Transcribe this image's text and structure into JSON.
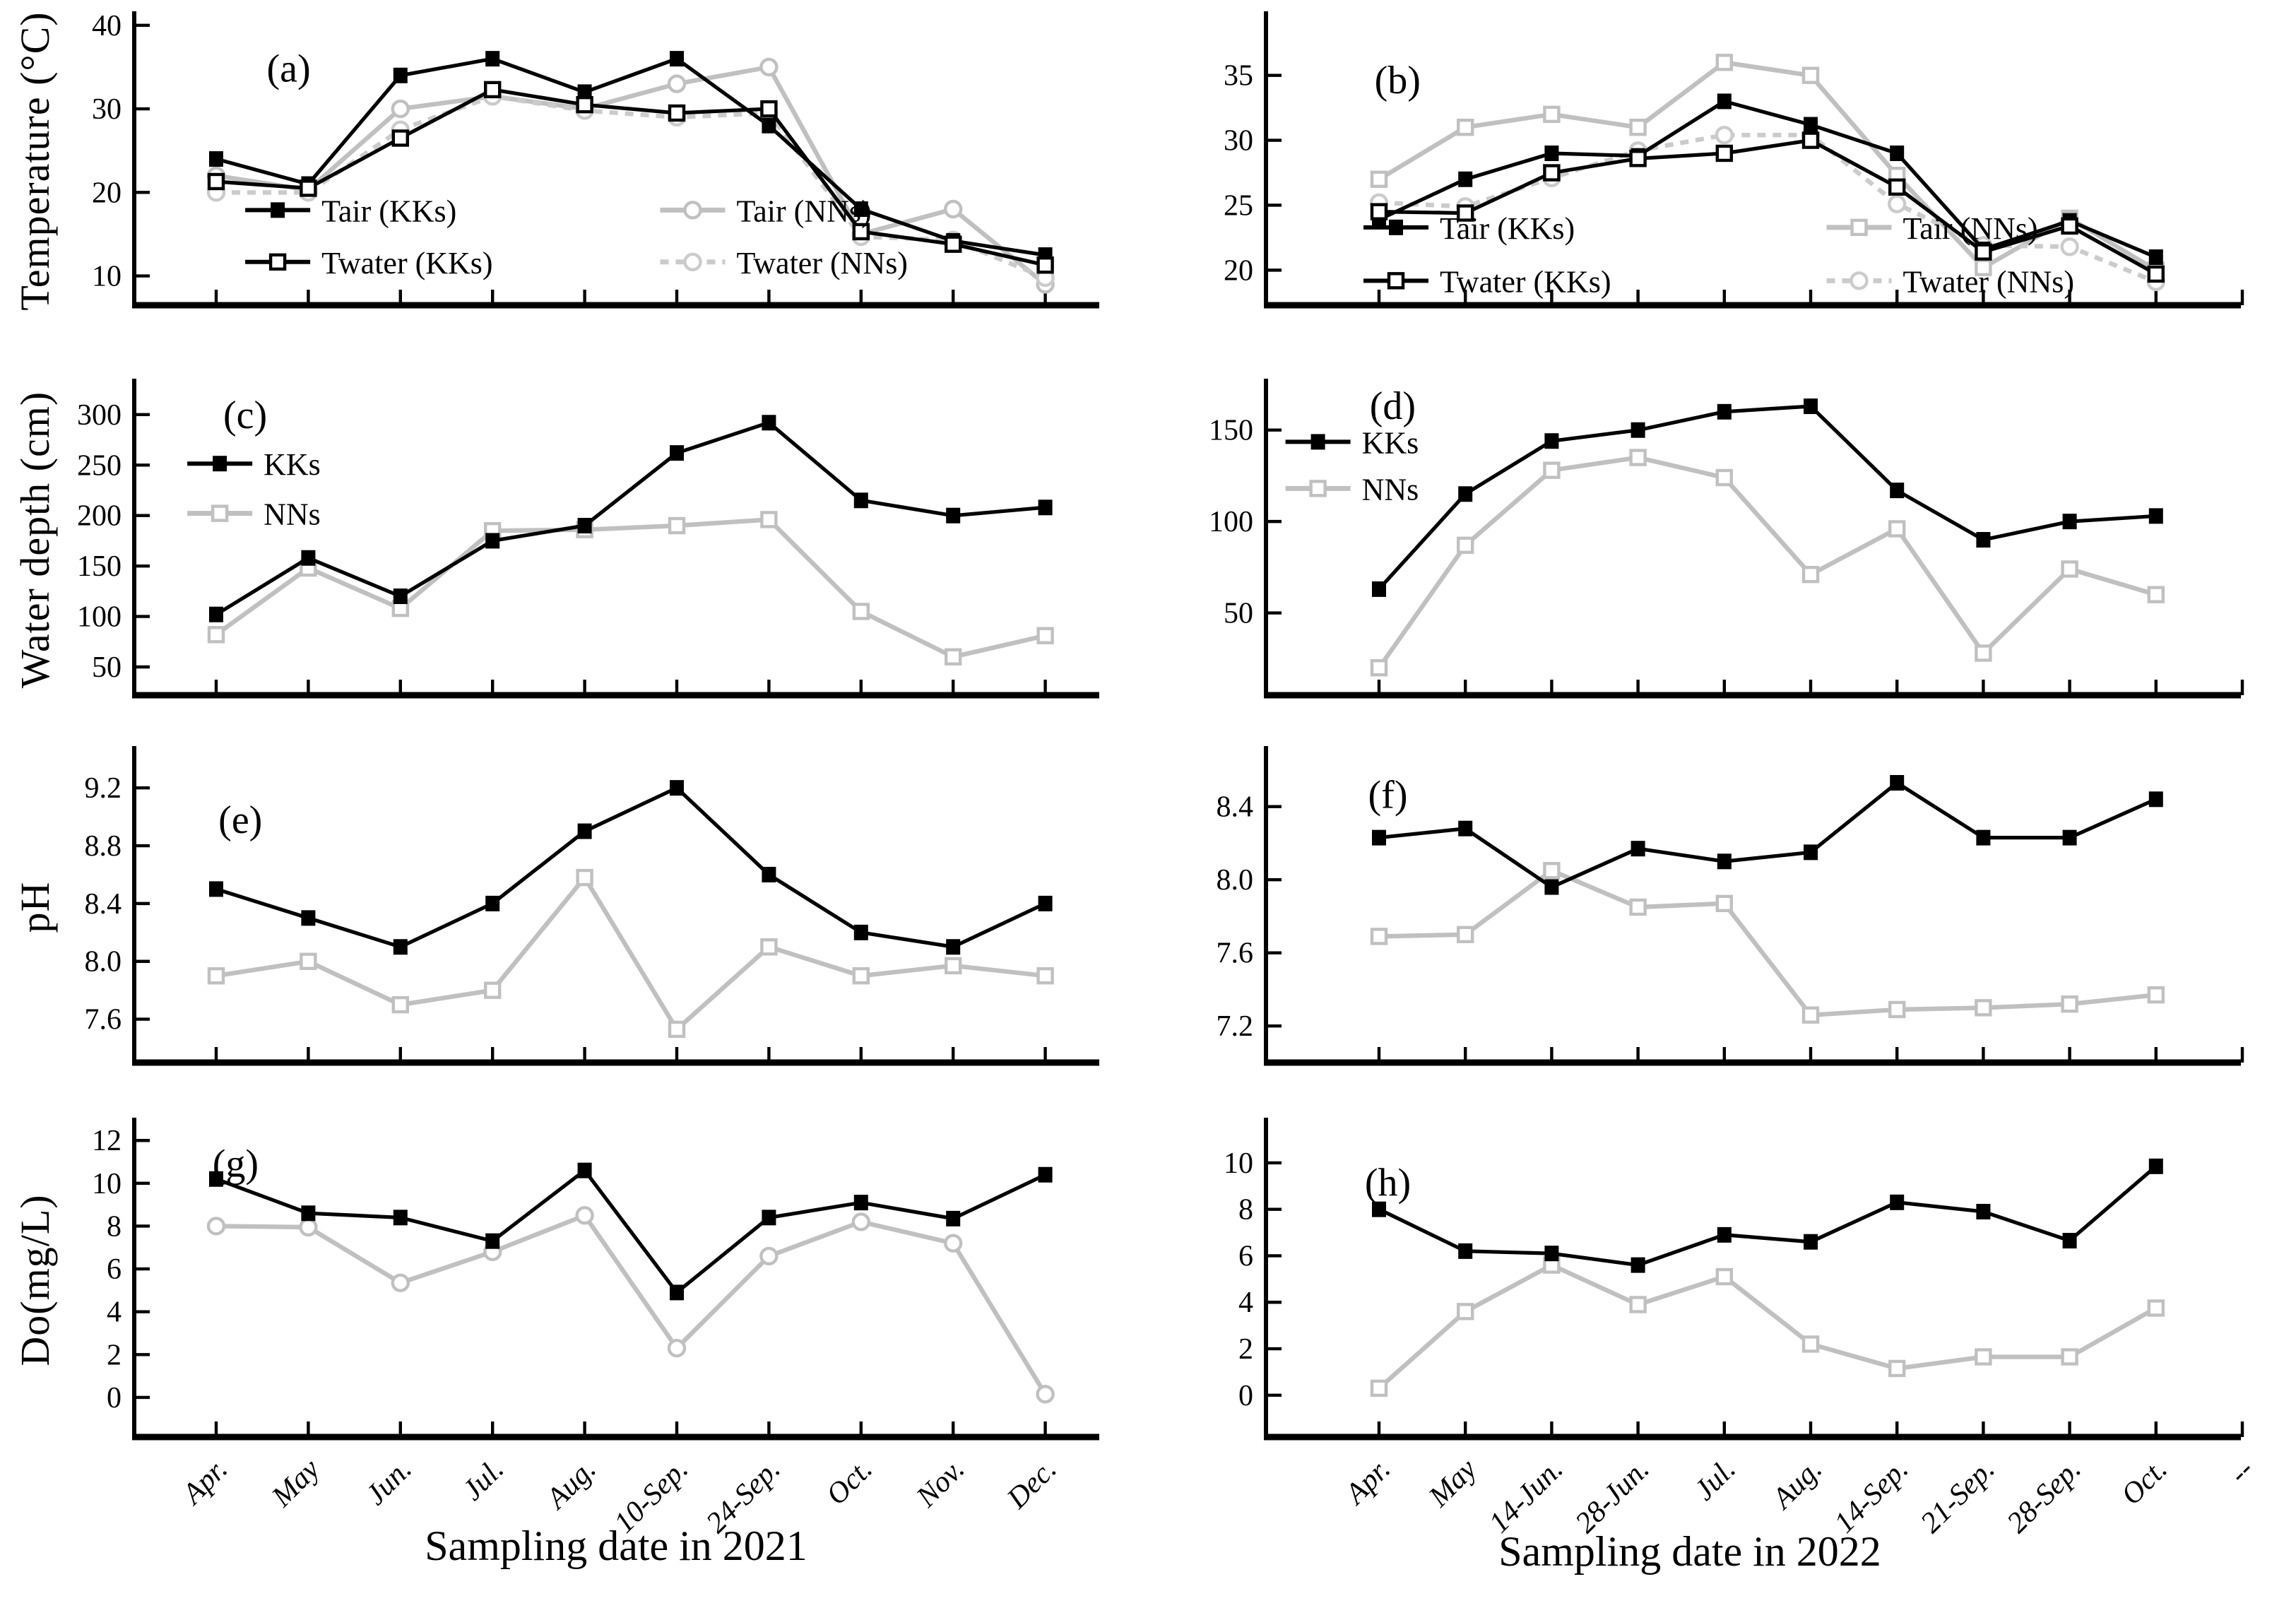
{
  "figure": {
    "background": "#ffffff",
    "row_axis_titles": [
      "Temperature (°C)",
      "Water depth (cm)",
      "pH",
      "Do(mg/L)"
    ],
    "x_axis_titles": [
      "Sampling date in 2021",
      "Sampling date in 2022"
    ],
    "colors": {
      "kks_black": "#000000",
      "nns_gray": "#c0c0c0",
      "nns_dashed_gray": "#cbcbcb"
    }
  },
  "x_categories_2021": [
    "Apr.",
    "May",
    "Jun.",
    "Jul.",
    "Aug.",
    "10-Sep.",
    "24-Sep.",
    "Oct.",
    "Nov.",
    "Dec."
  ],
  "x_categories_2022": [
    "Apr.",
    "May",
    "14-Jun.",
    "28-Jun.",
    "Jul.",
    "Aug.",
    "14-Sep.",
    "21-Sep.",
    "28-Sep.",
    "Oct.",
    "--"
  ],
  "chart_data": [
    {
      "id": "a",
      "panel_label": "(a)",
      "type": "line",
      "side": "left",
      "row": 0,
      "x_key": "x_categories_2021",
      "show_x_labels": false,
      "ylim": [
        6.5,
        41
      ],
      "yticks": [
        "10",
        "20",
        "30",
        "40"
      ],
      "label_pos": [
        0.16,
        0.18
      ],
      "legend": {
        "cols": [
          0.115,
          0.545
        ],
        "rows": [
          0.67,
          0.85
        ]
      },
      "series": [
        {
          "name": "Tair (KKs)",
          "color": "#000000",
          "marker": "square-filled",
          "dash": null,
          "values": [
            24,
            21,
            34,
            36,
            32,
            36,
            28,
            18,
            14.2,
            12.5
          ]
        },
        {
          "name": "Tair (NNs)",
          "color": "#c0c0c0",
          "marker": "circle-open",
          "dash": null,
          "values": [
            22,
            20.3,
            30,
            31.5,
            30,
            33,
            35,
            15,
            18,
            9
          ]
        },
        {
          "name": "Twater (KKs)",
          "color": "#000000",
          "marker": "square-open",
          "dash": null,
          "values": [
            21.3,
            20.5,
            26.5,
            32.3,
            30.5,
            29.5,
            30,
            15.3,
            13.8,
            11.3
          ]
        },
        {
          "name": "Twater (NNs)",
          "color": "#cbcbcb",
          "marker": "circle-open",
          "dash": "6 5",
          "values": [
            20,
            20,
            27.5,
            31.5,
            29.8,
            29,
            29.5,
            14.7,
            14.3,
            9.8
          ]
        }
      ]
    },
    {
      "id": "b",
      "panel_label": "(b)",
      "type": "line",
      "side": "right",
      "row": 0,
      "x_key": "x_categories_2022",
      "show_x_labels": false,
      "ylim": [
        17.3,
        39.5
      ],
      "yticks": [
        "20",
        "25",
        "30",
        "35"
      ],
      "label_pos": [
        0.135,
        0.22
      ],
      "legend": {
        "cols": [
          0.1,
          0.575
        ],
        "rows": [
          0.73,
          0.915
        ]
      },
      "series": [
        {
          "name": "Tair (KKs)",
          "color": "#000000",
          "marker": "square-filled",
          "dash": null,
          "values": [
            23.9,
            27,
            29,
            28.8,
            33,
            31.2,
            29,
            21.6,
            23.8,
            21
          ]
        },
        {
          "name": "Tair (NNs)",
          "color": "#c0c0c0",
          "marker": "square-open",
          "dash": null,
          "values": [
            27,
            31,
            32,
            31,
            36,
            35,
            27.3,
            20.2,
            24,
            20
          ]
        },
        {
          "name": "Twater (KKs)",
          "color": "#000000",
          "marker": "square-open",
          "dash": null,
          "values": [
            24.5,
            24.4,
            27.5,
            28.6,
            29,
            30,
            26.4,
            21.4,
            23.4,
            19.7
          ]
        },
        {
          "name": "Twater (NNs)",
          "color": "#cbcbcb",
          "marker": "circle-open",
          "dash": "6 5",
          "values": [
            25.2,
            24.9,
            27.1,
            29.2,
            30.4,
            30.4,
            25.1,
            21.9,
            21.8,
            19.1
          ]
        }
      ]
    },
    {
      "id": "c",
      "panel_label": "(c)",
      "type": "line",
      "side": "left",
      "row": 1,
      "x_key": "x_categories_2021",
      "show_x_labels": false,
      "ylim": [
        22,
        330
      ],
      "yticks": [
        "50",
        "100",
        "150",
        "200",
        "250",
        "300"
      ],
      "label_pos": [
        0.115,
        0.1
      ],
      "legend": {
        "cols": [
          0.055
        ],
        "rows": [
          0.255,
          0.415
        ]
      },
      "series": [
        {
          "name": "KKs",
          "color": "#000000",
          "marker": "square-filled",
          "dash": null,
          "values": [
            102,
            158,
            120,
            175,
            190,
            262,
            292,
            215,
            200,
            208
          ]
        },
        {
          "name": "NNs",
          "color": "#c0c0c0",
          "marker": "square-open",
          "dash": null,
          "values": [
            82,
            148,
            108,
            185,
            186,
            190,
            196,
            105,
            60,
            81
          ]
        }
      ]
    },
    {
      "id": "d",
      "panel_label": "(d)",
      "type": "line",
      "side": "right",
      "row": 1,
      "x_key": "x_categories_2022",
      "show_x_labels": false,
      "ylim": [
        5,
        175
      ],
      "yticks": [
        "50",
        "100",
        "150"
      ],
      "label_pos": [
        0.13,
        0.07
      ],
      "legend": {
        "cols": [
          0.02
        ],
        "rows": [
          0.185,
          0.335
        ]
      },
      "series": [
        {
          "name": "KKs",
          "color": "#000000",
          "marker": "square-filled",
          "dash": null,
          "values": [
            63,
            115,
            144,
            150,
            160,
            163,
            117,
            90,
            100,
            103
          ]
        },
        {
          "name": "NNs",
          "color": "#c0c0c0",
          "marker": "square-open",
          "dash": null,
          "values": [
            20,
            87,
            128,
            135,
            124,
            71,
            96,
            28,
            74,
            60
          ]
        }
      ]
    },
    {
      "id": "e",
      "panel_label": "(e)",
      "type": "line",
      "side": "left",
      "row": 2,
      "x_key": "x_categories_2021",
      "show_x_labels": false,
      "ylim": [
        7.3,
        9.45
      ],
      "yticks": [
        "7.6",
        "8.0",
        "8.4",
        "8.8",
        "9.2"
      ],
      "label_pos": [
        0.11,
        0.22
      ],
      "legend": null,
      "series": [
        {
          "name": "KKs",
          "color": "#000000",
          "marker": "square-filled",
          "dash": null,
          "values": [
            8.5,
            8.3,
            8.1,
            8.4,
            8.9,
            9.2,
            8.6,
            8.2,
            8.1,
            8.4
          ]
        },
        {
          "name": "NNs",
          "color": "#c0c0c0",
          "marker": "square-open",
          "dash": null,
          "values": [
            7.9,
            8.0,
            7.7,
            7.8,
            8.58,
            7.53,
            8.1,
            7.9,
            7.97,
            7.9
          ]
        }
      ]
    },
    {
      "id": "f",
      "panel_label": "(f)",
      "type": "line",
      "side": "right",
      "row": 2,
      "x_key": "x_categories_2022",
      "show_x_labels": false,
      "ylim": [
        7.0,
        8.7
      ],
      "yticks": [
        "7.2",
        "7.6",
        "8.0",
        "8.4"
      ],
      "label_pos": [
        0.125,
        0.14
      ],
      "legend": null,
      "series": [
        {
          "name": "KKs",
          "color": "#000000",
          "marker": "square-filled",
          "dash": null,
          "values": [
            8.23,
            8.28,
            7.96,
            8.17,
            8.1,
            8.15,
            8.53,
            8.23,
            8.23,
            8.44
          ]
        },
        {
          "name": "NNs",
          "color": "#c0c0c0",
          "marker": "square-open",
          "dash": null,
          "values": [
            7.69,
            7.7,
            8.05,
            7.85,
            7.87,
            7.26,
            7.29,
            7.3,
            7.32,
            7.37
          ]
        }
      ]
    },
    {
      "id": "g",
      "panel_label": "(g)",
      "type": "line",
      "side": "left",
      "row": 3,
      "x_key": "x_categories_2021",
      "show_x_labels": true,
      "ylim": [
        -1.85,
        12.8
      ],
      "yticks": [
        "0",
        "2",
        "4",
        "6",
        "8",
        "10",
        "12"
      ],
      "label_pos": [
        0.105,
        0.13
      ],
      "legend": null,
      "series": [
        {
          "name": "KKs",
          "color": "#000000",
          "marker": "square-filled",
          "dash": null,
          "values": [
            10.2,
            8.6,
            8.4,
            7.3,
            10.6,
            4.9,
            8.4,
            9.1,
            8.35,
            10.4
          ]
        },
        {
          "name": "NNs",
          "color": "#c0c0c0",
          "marker": "circle-open",
          "dash": null,
          "values": [
            8.0,
            7.95,
            5.35,
            6.8,
            8.5,
            2.3,
            6.6,
            8.2,
            7.2,
            0.15
          ]
        }
      ]
    },
    {
      "id": "h",
      "panel_label": "(h)",
      "type": "line",
      "side": "right",
      "row": 3,
      "x_key": "x_categories_2022",
      "show_x_labels": true,
      "ylim": [
        -1.8,
        11.7
      ],
      "yticks": [
        "0",
        "2",
        "4",
        "6",
        "8",
        "10"
      ],
      "label_pos": [
        0.125,
        0.19
      ],
      "legend": null,
      "series": [
        {
          "name": "KKs",
          "color": "#000000",
          "marker": "square-filled",
          "dash": null,
          "values": [
            8.0,
            6.2,
            6.1,
            5.6,
            6.9,
            6.6,
            8.3,
            7.9,
            6.65,
            9.85
          ]
        },
        {
          "name": "NNs",
          "color": "#c0c0c0",
          "marker": "square-open",
          "dash": null,
          "values": [
            0.3,
            3.6,
            5.6,
            3.9,
            5.1,
            2.2,
            1.15,
            1.65,
            1.65,
            3.75
          ]
        }
      ]
    }
  ]
}
